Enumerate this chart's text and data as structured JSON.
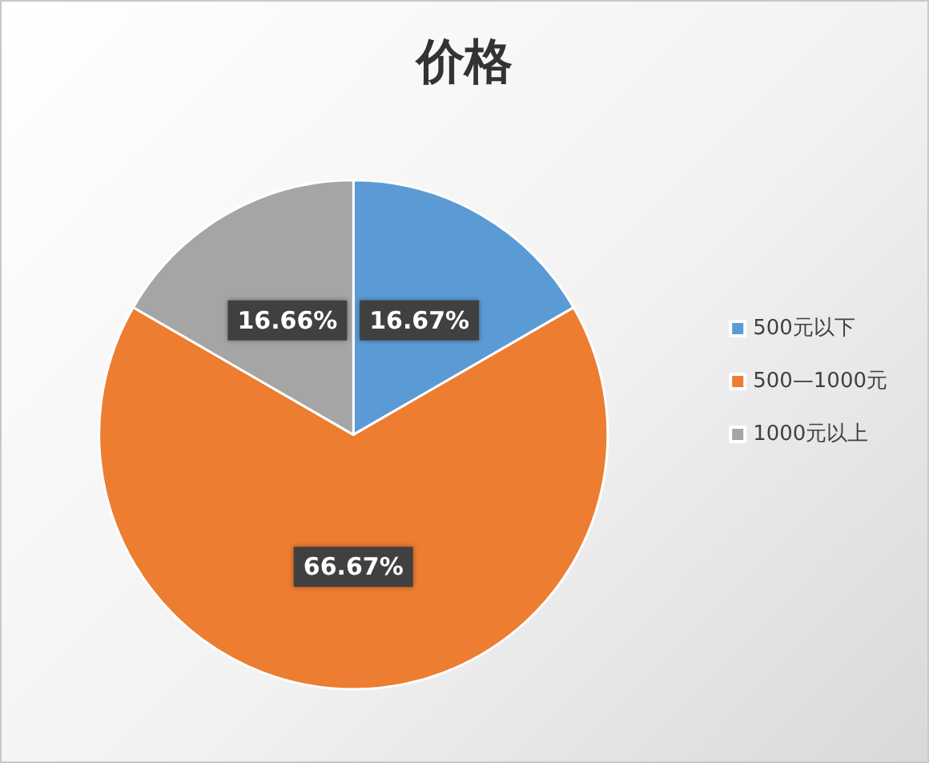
{
  "chart_data": {
    "type": "pie",
    "title": "价格",
    "categories": [
      "500元以下",
      "500—1000元",
      "1000元以上"
    ],
    "values": [
      16.67,
      66.67,
      16.66
    ],
    "value_labels": [
      "16.67%",
      "66.67%",
      "16.66%"
    ],
    "colors": [
      "#5b9bd5",
      "#ed7d31",
      "#a5a5a5"
    ],
    "legend": "right"
  }
}
